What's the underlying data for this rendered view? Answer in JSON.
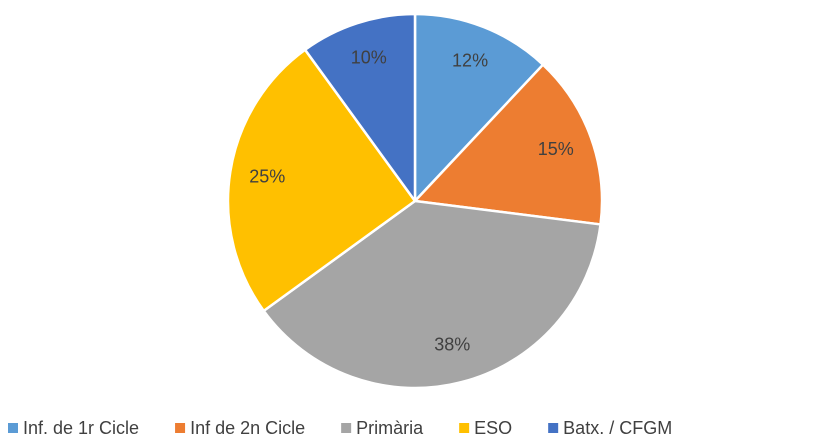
{
  "chart_data": {
    "type": "pie",
    "categories": [
      "Inf. de 1r Cicle",
      "Inf de 2n Cicle",
      "Primària",
      "ESO",
      "Batx. / CFGM"
    ],
    "values": [
      12,
      15,
      38,
      25,
      10
    ],
    "value_labels": [
      "12%",
      "15%",
      "38%",
      "25%",
      "10%"
    ],
    "colors": [
      "#5b9bd5",
      "#ed7d31",
      "#a5a5a5",
      "#ffc000",
      "#4472c4"
    ],
    "legend": "bottom"
  }
}
